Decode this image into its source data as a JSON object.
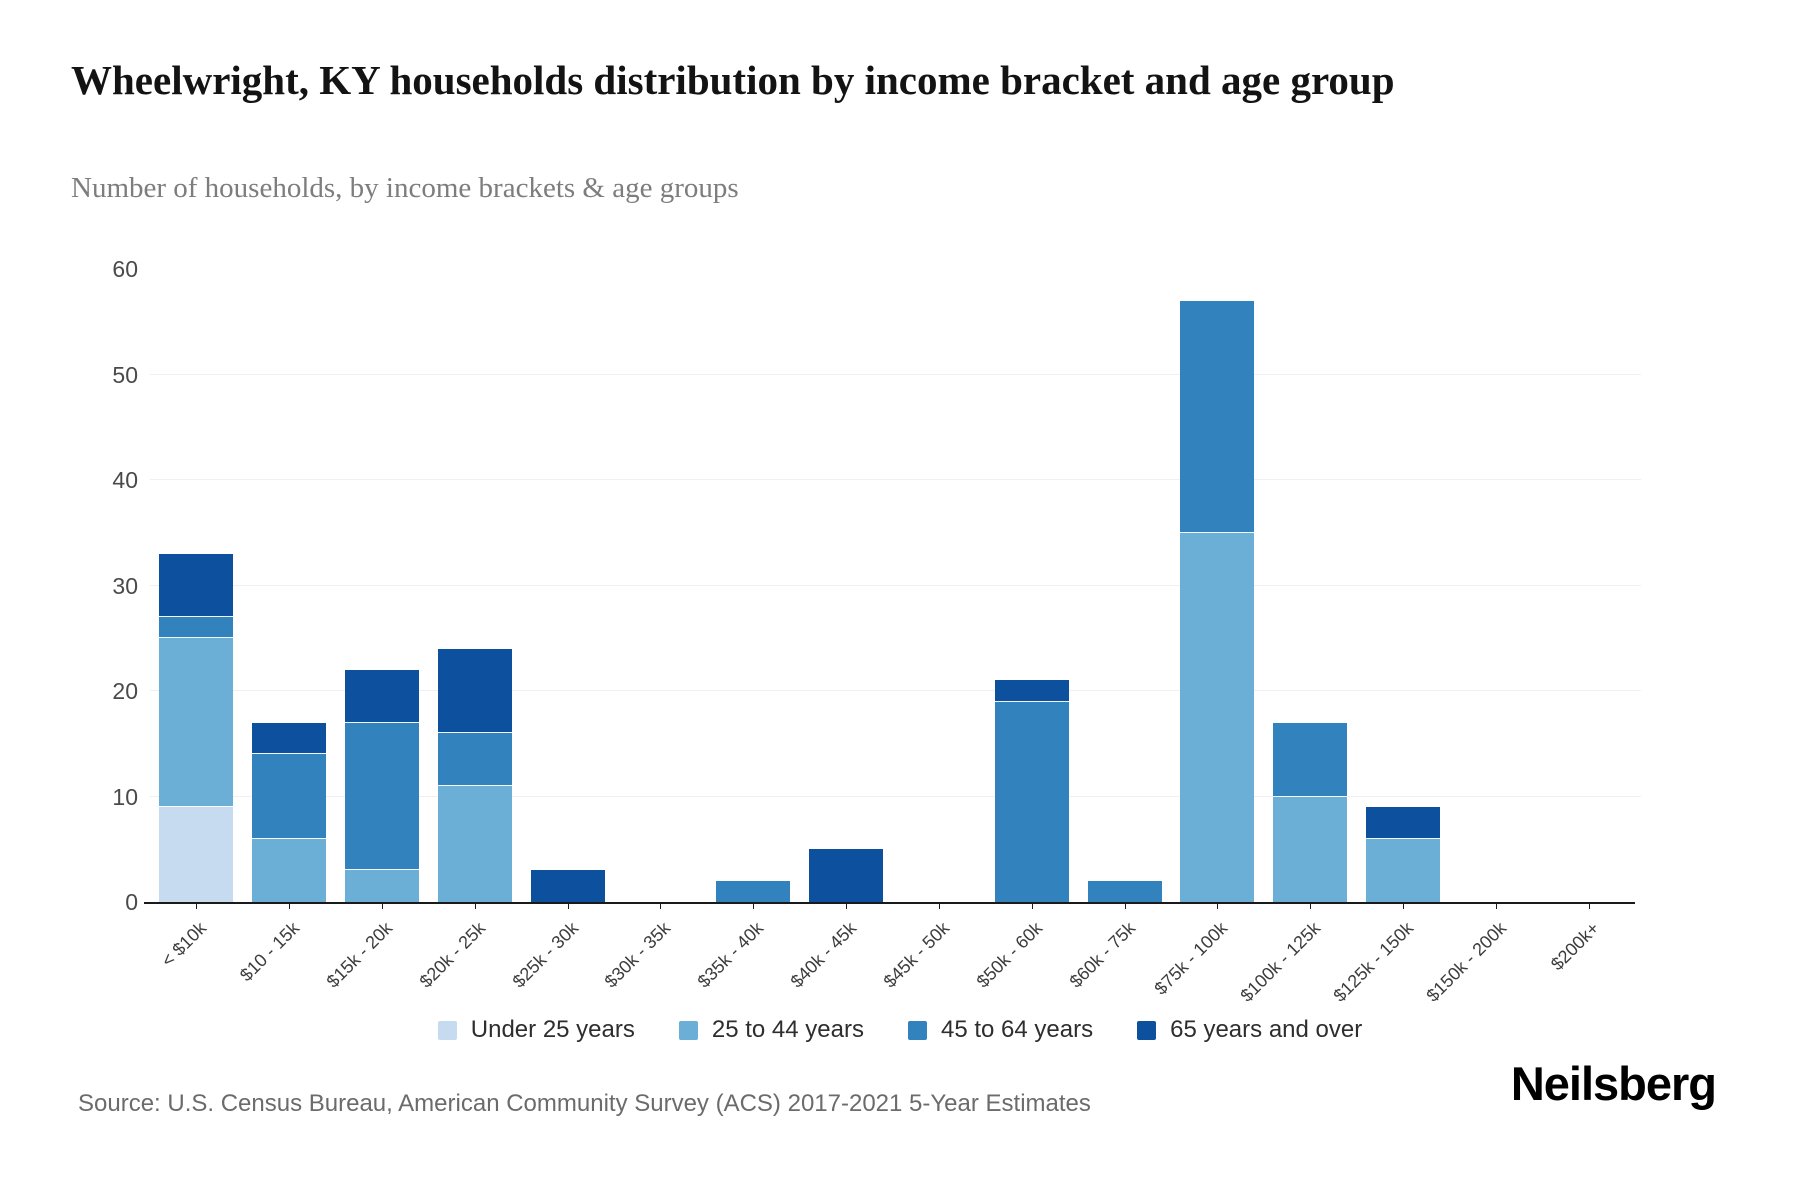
{
  "header": {
    "title": "Wheelwright, KY households distribution by income bracket and age group",
    "subtitle": "Number of households, by income brackets & age groups"
  },
  "chart_data": {
    "type": "bar",
    "stacked": true,
    "title": "Wheelwright, KY households distribution by income bracket and age group",
    "xlabel": "",
    "ylabel": "Number of households",
    "categories": [
      "< $10k",
      "$10 - 15k",
      "$15k - 20k",
      "$20k - 25k",
      "$25k - 30k",
      "$30k - 35k",
      "$35k - 40k",
      "$40k - 45k",
      "$45k - 50k",
      "$50k - 60k",
      "$60k - 75k",
      "$75k - 100k",
      "$100k - 125k",
      "$125k - 150k",
      "$150k - 200k",
      "$200k+"
    ],
    "series": [
      {
        "name": "Under 25 years",
        "color": "#c6dbef",
        "values": [
          9,
          0,
          0,
          0,
          0,
          0,
          0,
          0,
          0,
          0,
          0,
          0,
          0,
          0,
          0,
          0
        ]
      },
      {
        "name": "25 to 44 years",
        "color": "#6baed6",
        "values": [
          16,
          6,
          3,
          11,
          0,
          0,
          0,
          0,
          0,
          0,
          0,
          35,
          10,
          6,
          0,
          0
        ]
      },
      {
        "name": "45 to 64 years",
        "color": "#3182bd",
        "values": [
          2,
          8,
          14,
          5,
          0,
          0,
          2,
          0,
          0,
          19,
          2,
          22,
          7,
          0,
          0,
          0
        ]
      },
      {
        "name": "65 years and over",
        "color": "#0d509e",
        "values": [
          6,
          3,
          5,
          8,
          3,
          0,
          0,
          5,
          0,
          2,
          0,
          0,
          0,
          3,
          0,
          0
        ]
      }
    ],
    "totals": [
      33,
      17,
      22,
      24,
      3,
      0,
      2,
      5,
      0,
      21,
      2,
      57,
      17,
      9,
      0,
      0
    ],
    "ylim": [
      0,
      60
    ],
    "yticks": [
      0,
      10,
      20,
      30,
      40,
      50,
      60
    ],
    "grid": "horizontal",
    "gridline_color": "#f0f0f0",
    "axis_color": "#1a1a1a",
    "legend_position": "bottom"
  },
  "footer": {
    "source": "Source: U.S. Census Bureau, American Community Survey (ACS) 2017-2021 5-Year Estimates",
    "brand": "Neilsberg"
  }
}
